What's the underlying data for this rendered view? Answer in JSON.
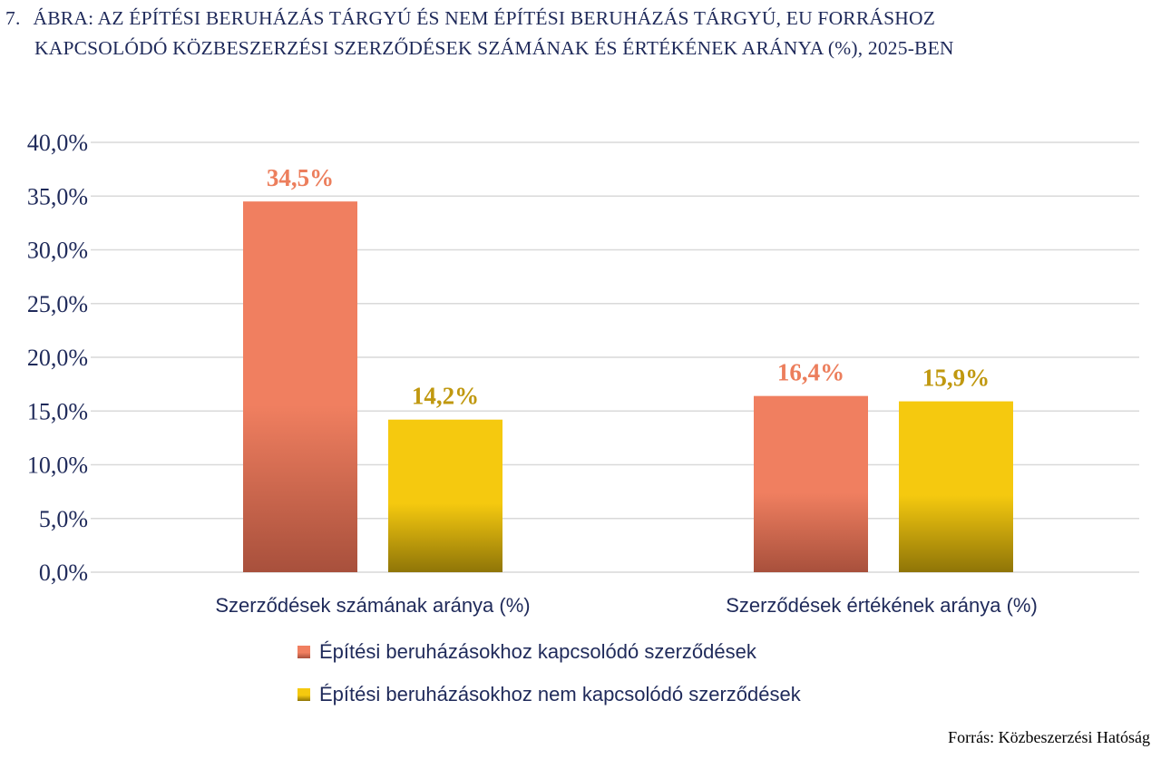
{
  "figure": {
    "number": "7.",
    "title_line1": "ÁBRA: AZ ÉPÍTÉSI BERUHÁZÁS TÁRGYÚ ÉS NEM ÉPÍTÉSI BERUHÁZÁS TÁRGYÚ, EU FORRÁSHOZ",
    "title_line2": "KAPCSOLÓDÓ KÖZBESZERZÉSI SZERZŐDÉSEK SZÁMÁNAK ÉS ÉRTÉKÉNEK ARÁNYA (%), 2025-BEN",
    "source": "Forrás: Közbeszerzési Hatóság"
  },
  "colors": {
    "text": "#1f2a5a",
    "series1_top": "#f07f60",
    "series1_bottom": "#a8503c",
    "series1_label": "#ec7e5c",
    "series2_top": "#f5c90f",
    "series2_bottom": "#8f7508",
    "series2_label": "#c0980f",
    "grid": "#d9d9d9"
  },
  "chart_data": {
    "type": "bar",
    "title": "ÁBRA: AZ ÉPÍTÉSI BERUHÁZÁS TÁRGYÚ ÉS NEM ÉPÍTÉSI BERUHÁZÁS TÁRGYÚ, EU FORRÁSHOZ KAPCSOLÓDÓ KÖZBESZERZÉSI SZERZŐDÉSEK SZÁMÁNAK ÉS ÉRTÉKÉNEK ARÁNYA (%), 2025-BEN",
    "categories": [
      "Szerződések számának aránya (%)",
      "Szerződések értékének aránya (%)"
    ],
    "series": [
      {
        "name": "Építési beruházásokhoz kapcsolódó szerződések",
        "values": [
          34.5,
          16.4
        ],
        "labels": [
          "34,5%",
          "16,4%"
        ]
      },
      {
        "name": "Építési beruházásokhoz nem kapcsolódó szerződések",
        "values": [
          14.2,
          15.9
        ],
        "labels": [
          "14,2%",
          "15,9%"
        ]
      }
    ],
    "ylim": [
      0,
      40
    ],
    "yticks": [
      0,
      5,
      10,
      15,
      20,
      25,
      30,
      35,
      40
    ],
    "ytick_labels": [
      "0,0%",
      "5,0%",
      "10,0%",
      "15,0%",
      "20,0%",
      "25,0%",
      "30,0%",
      "35,0%",
      "40,0%"
    ],
    "grid": true,
    "legend_position": "bottom"
  }
}
